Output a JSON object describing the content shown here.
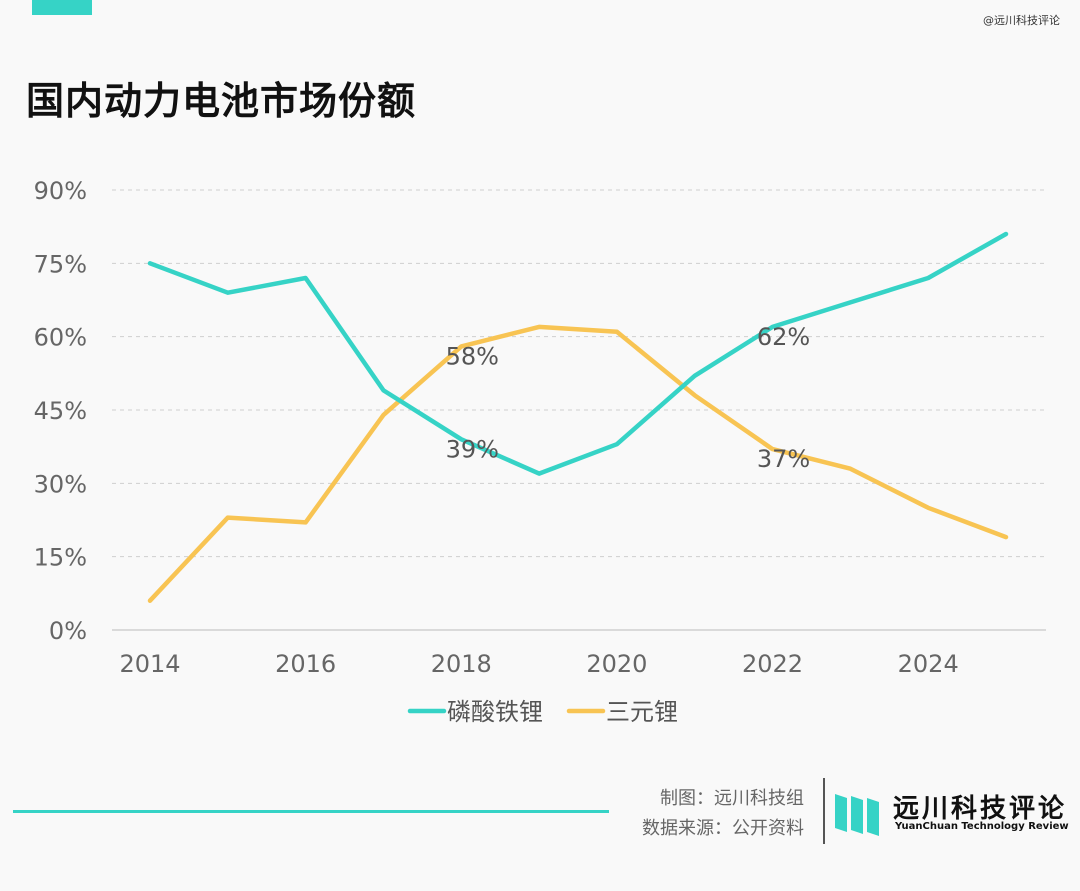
{
  "header": {
    "watermark": "@远川科技评论",
    "title": "国内动力电池市场份额"
  },
  "footer": {
    "credit_line1": "制图：远川科技组",
    "credit_line2": "数据来源：公开资料",
    "brand_cn": "远川科技评论",
    "brand_en": "YuanChuan Technology Review"
  },
  "colors": {
    "accent": "#36d3c6",
    "lfp": "#36d3c6",
    "ternary": "#f8c453",
    "grid": "#cfcfcf",
    "axis_text": "#666666"
  },
  "chart_data": {
    "type": "line",
    "title": "国内动力电池市场份额",
    "xlabel": "",
    "ylabel": "",
    "x": [
      2014,
      2015,
      2016,
      2017,
      2018,
      2019,
      2020,
      2021,
      2022,
      2023,
      2024,
      2025
    ],
    "xticks": [
      "2014",
      "2016",
      "2018",
      "2020",
      "2022",
      "2024"
    ],
    "yticks": [
      "0%",
      "15%",
      "30%",
      "45%",
      "60%",
      "75%",
      "90%"
    ],
    "ylim": [
      0,
      90
    ],
    "grid": "horizontal dashed",
    "legend": "bottom-center",
    "series": [
      {
        "name": "磷酸铁锂",
        "color": "#36d3c6",
        "values": [
          75,
          69,
          72,
          49,
          39,
          32,
          38,
          52,
          62,
          67,
          72,
          81
        ]
      },
      {
        "name": "三元锂",
        "color": "#f8c453",
        "values": [
          6,
          23,
          22,
          44,
          58,
          62,
          61,
          48,
          37,
          33,
          25,
          19
        ]
      }
    ],
    "annotations": [
      {
        "series": "磷酸铁锂",
        "x": 2018,
        "text": "39%"
      },
      {
        "series": "三元锂",
        "x": 2018,
        "text": "58%"
      },
      {
        "series": "磷酸铁锂",
        "x": 2022,
        "text": "62%"
      },
      {
        "series": "三元锂",
        "x": 2022,
        "text": "37%"
      }
    ]
  }
}
